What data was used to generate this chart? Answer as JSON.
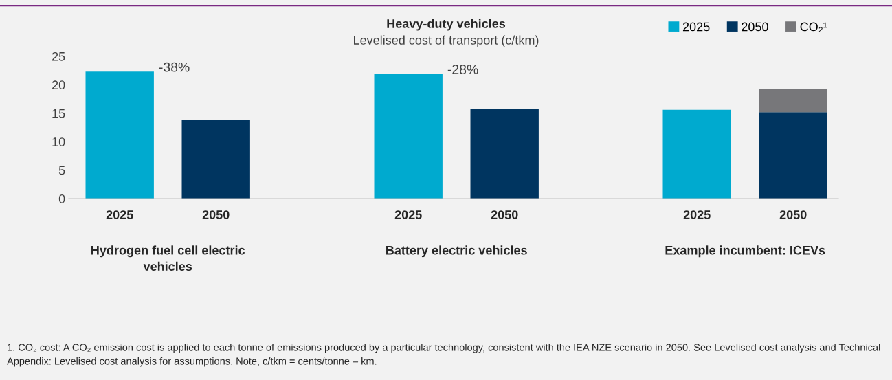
{
  "chart_data": {
    "type": "bar",
    "title": "Heavy-duty vehicles",
    "subtitle": "Levelised cost of transport (c/tkm)",
    "categories": [
      "2025",
      "2050",
      "2025",
      "2050",
      "2025",
      "2050"
    ],
    "stacked": true,
    "series": [
      {
        "name": "2025",
        "color": "#00aacf",
        "values": [
          22.3,
          null,
          21.9,
          null,
          15.6,
          null
        ]
      },
      {
        "name": "2050",
        "color": "#003560",
        "values": [
          null,
          13.8,
          null,
          15.8,
          null,
          15.2
        ]
      },
      {
        "name": "CO₂¹",
        "color": "#77777a",
        "values": [
          null,
          null,
          null,
          null,
          null,
          4.0
        ]
      }
    ],
    "ylim": [
      0,
      25
    ],
    "yticks": [
      0,
      5,
      10,
      15,
      20,
      25
    ],
    "grid": false,
    "legend": "top right",
    "annotations": [
      "Hydrogen fuel cell electric\nvehicles",
      "Battery electric vehicles",
      "Example incumbent: ICEVs",
      "-38%",
      "-28%",
      "1. CO₂ cost: A CO₂ emission cost is applied to each tonne of emissions produced by a particular technology, consistent with the IEA NZE scenario in 2050. See Levelised cost analysis and Technical Appendix: Levelised cost analysis for assumptions. Note, c/tkm = cents/tonne – km."
    ]
  }
}
